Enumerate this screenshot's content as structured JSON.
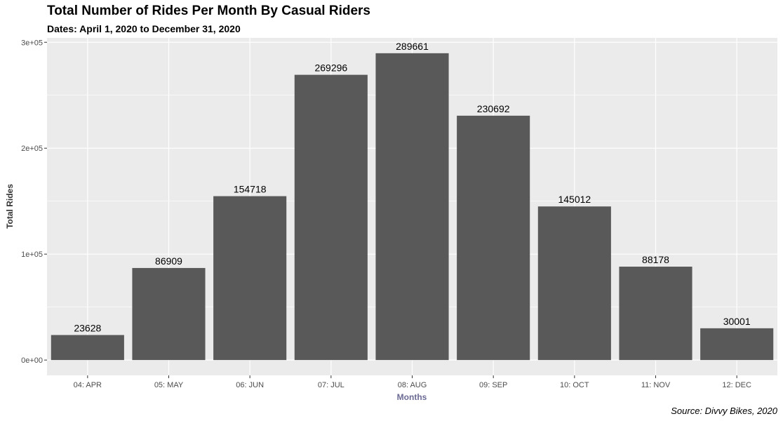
{
  "chart_data": {
    "type": "bar",
    "title": "Total Number of Rides Per Month By Casual Riders",
    "subtitle": "Dates: April 1, 2020 to December 31, 2020",
    "caption": "Source: Divvy Bikes, 2020",
    "xlabel": "Months",
    "ylabel": "Total Rides",
    "categories": [
      "04: APR",
      "05: MAY",
      "06: JUN",
      "07: JUL",
      "08: AUG",
      "09: SEP",
      "10: OCT",
      "11: NOV",
      "12: DEC"
    ],
    "values": [
      23628,
      86909,
      154718,
      269296,
      289661,
      230692,
      145012,
      88178,
      30001
    ],
    "data_labels": [
      "23628",
      "86909",
      "154718",
      "269296",
      "289661",
      "230692",
      "145012",
      "88178",
      "30001"
    ],
    "ylim": [
      -14483,
      304144
    ],
    "yticks": [
      0,
      100000,
      200000,
      300000
    ],
    "ytick_labels": [
      "0e+00",
      "1e+05",
      "2e+05",
      "3e+05"
    ],
    "grid": true,
    "legend": "none",
    "colors": {
      "bar": "#595959",
      "panel_background": "#ebebeb",
      "grid": "#ffffff",
      "xlabel": "#6b6b94"
    }
  }
}
